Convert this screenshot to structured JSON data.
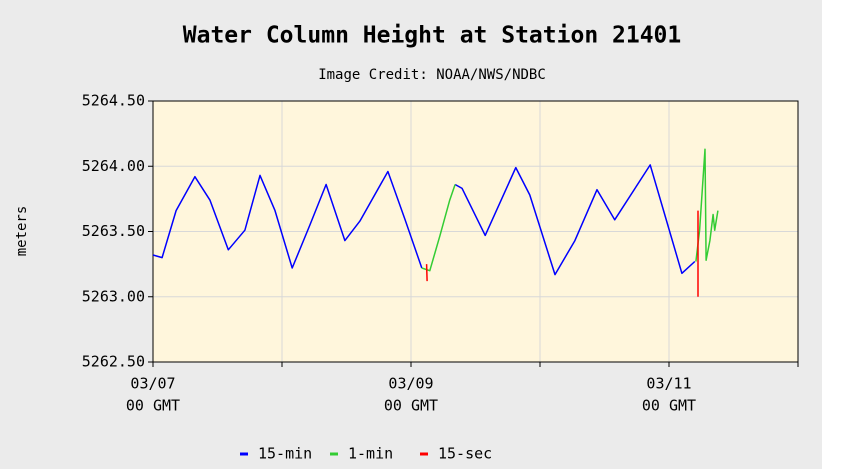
{
  "chart_data": {
    "type": "line",
    "title": "Water Column Height at Station 21401",
    "subtitle": "Image Credit: NOAA/NWS/NDBC",
    "ylabel": "meters",
    "xlim": [
      0,
      120
    ],
    "xticks": [
      {
        "value": 0,
        "label": "03/07"
      },
      {
        "value": 48,
        "label": "03/09"
      },
      {
        "value": 96,
        "label": "03/11"
      }
    ],
    "xtick_time_label": "00 GMT",
    "xgrid": [
      24,
      72,
      120
    ],
    "ylim": [
      5262.5,
      5264.5
    ],
    "yticks": [
      {
        "value": 5262.5,
        "label": "5262.50"
      },
      {
        "value": 5263,
        "label": "5263.00"
      },
      {
        "value": 5263.5,
        "label": "5263.50"
      },
      {
        "value": 5264,
        "label": "5264.00"
      },
      {
        "value": 5264.5,
        "label": "5264.50"
      }
    ],
    "grid": true,
    "series": [
      {
        "name": "15-min",
        "color": "#0000ff",
        "x": [
          0,
          1.7,
          4.3,
          7.8,
          10.6,
          14.0,
          17.1,
          19.9,
          22.7,
          25.9,
          29.2,
          32.2,
          35.7,
          38.5,
          43.7,
          46.9,
          50.0,
          53.0,
          56.2,
          57.5,
          61.8,
          67.5,
          70.1,
          74.8,
          78.5,
          82.6,
          85.9,
          92.5,
          95.2,
          98.4,
          100.8
        ],
        "values": [
          5263.32,
          5263.3,
          5263.66,
          5263.92,
          5263.74,
          5263.36,
          5263.51,
          5263.93,
          5263.66,
          5263.22,
          5263.55,
          5263.86,
          5263.43,
          5263.58,
          5263.96,
          5263.59,
          5263.22,
          null,
          5263.86,
          5263.83,
          5263.47,
          5263.99,
          5263.78,
          5263.17,
          5263.43,
          5263.82,
          5263.59,
          5264.01,
          5263.63,
          5263.18,
          5263.27
        ]
      },
      {
        "name": "1-min",
        "color": "#33cc33",
        "x": [
          50.0,
          51.5,
          53.4,
          55.2,
          56.2,
          80,
          101.0,
          101.7,
          102.7,
          102.9,
          103.6,
          104.2,
          104.5,
          105.1
        ],
        "values": [
          5263.22,
          5263.2,
          5263.47,
          5263.74,
          5263.86,
          null,
          5263.27,
          5263.51,
          5264.13,
          5263.28,
          5263.43,
          5263.63,
          5263.51,
          5263.66
        ]
      },
      {
        "name": "15-sec",
        "color": "#ff0000",
        "x": [
          50.9,
          51.0,
          75,
          101.4,
          101.4
        ],
        "values": [
          5263.25,
          5263.12,
          null,
          5263.66,
          5263.0
        ]
      }
    ]
  }
}
